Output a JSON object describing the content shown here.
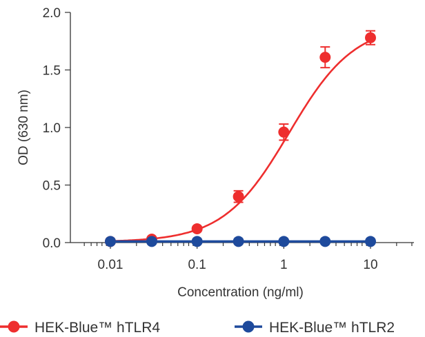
{
  "chart_data": {
    "type": "scatter",
    "xlabel": "Concentration (ng/ml)",
    "ylabel": "OD (630 nm)",
    "x_scale": "log",
    "xlim": [
      0.004,
      30
    ],
    "ylim": [
      0,
      2.0
    ],
    "x_ticks": [
      0.01,
      0.1,
      1,
      10
    ],
    "x_tick_labels": [
      "0.01",
      "0.1",
      "1",
      "10"
    ],
    "y_ticks": [
      0,
      0.5,
      1.0,
      1.5,
      2.0
    ],
    "y_tick_labels": [
      "0.0",
      "0.5",
      "1.0",
      "1.5",
      "2.0"
    ],
    "grid": false,
    "legend_position": "bottom",
    "series": [
      {
        "name": "HEK-Blue™ hTLR4",
        "color": "#ee2e2e",
        "x": [
          0.01,
          0.03,
          0.1,
          0.3,
          1,
          3,
          10
        ],
        "y": [
          0.01,
          0.03,
          0.12,
          0.4,
          0.96,
          1.61,
          1.78
        ],
        "error": [
          0.0,
          0.01,
          0.01,
          0.05,
          0.07,
          0.09,
          0.06
        ],
        "fit": "sigmoidal"
      },
      {
        "name": "HEK-Blue™ hTLR2",
        "color": "#1e4a9c",
        "x": [
          0.01,
          0.03,
          0.1,
          0.3,
          1,
          3,
          10
        ],
        "y": [
          0.01,
          0.01,
          0.01,
          0.01,
          0.01,
          0.01,
          0.01
        ],
        "error": [
          0,
          0,
          0,
          0,
          0,
          0,
          0
        ],
        "fit": "flat"
      }
    ]
  }
}
